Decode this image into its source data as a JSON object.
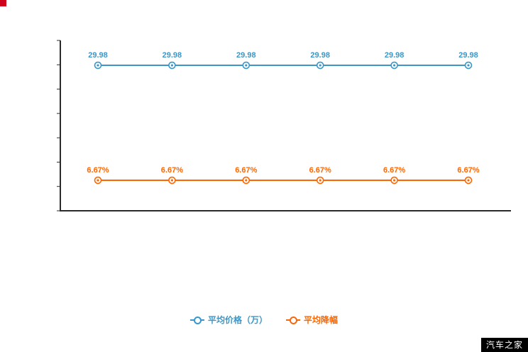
{
  "watermark": "汽车之家",
  "chart_data": {
    "type": "line",
    "title": "",
    "xlabel": "",
    "ylabel": "",
    "grid": false,
    "legend_position": "bottom",
    "axis_color": "#2b2b2b",
    "categories": [
      "",
      "",
      "",
      "",
      "",
      ""
    ],
    "series": [
      {
        "name": "平均价格（万）",
        "color": "#3b97c8",
        "values": [
          29.98,
          29.98,
          29.98,
          29.98,
          29.98,
          29.98
        ],
        "labels": [
          "29.98",
          "29.98",
          "29.98",
          "29.98",
          "29.98",
          "29.98"
        ],
        "y_frac": 0.146
      },
      {
        "name": "平均降幅",
        "color": "#ff6600",
        "values": [
          6.67,
          6.67,
          6.67,
          6.67,
          6.67,
          6.67
        ],
        "labels": [
          "6.67%",
          "6.67%",
          "6.67%",
          "6.67%",
          "6.67%",
          "6.67%"
        ],
        "y_frac": 0.821
      }
    ]
  }
}
